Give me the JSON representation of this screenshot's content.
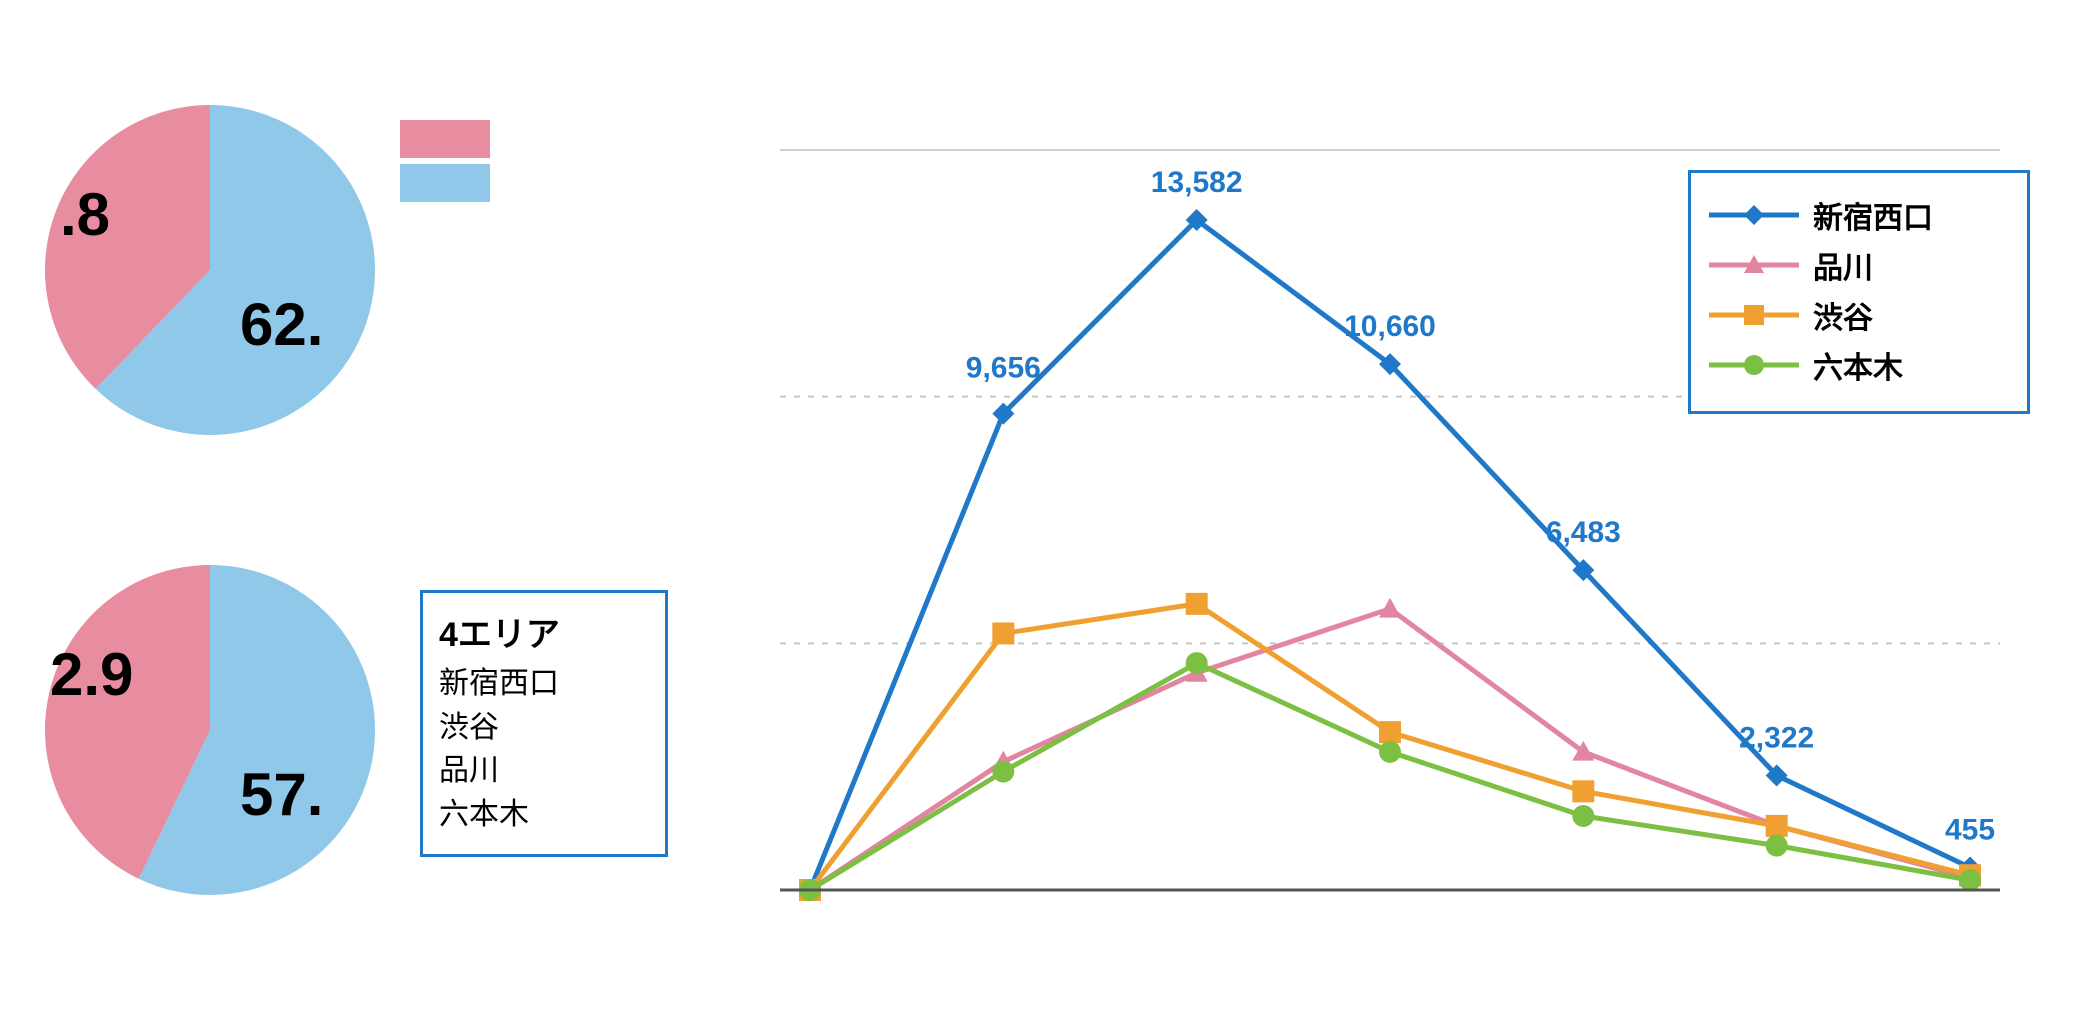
{
  "colors": {
    "pink": "#e88ca0",
    "blue": "#8fc8e8",
    "series_blue": "#1f78c8",
    "series_pink": "#e285a0",
    "series_orange": "#f0a030",
    "series_green": "#7bc043",
    "box_border": "#1f78c8",
    "grid": "#d0d0d0",
    "grid_dash": "#c8c8c8",
    "axis": "#555555",
    "text": "#000000"
  },
  "pie1": {
    "type": "pie",
    "pink_value": 37.8,
    "blue_value": 62.2,
    "pink_label": ".8",
    "blue_label": "62.",
    "pink_deg": 136.1,
    "blue_deg": 223.9,
    "label_fontsize": 60
  },
  "pie2": {
    "type": "pie",
    "pink_value": 42.9,
    "blue_value": 57.1,
    "pink_label": "2.9",
    "blue_label": "57.",
    "pink_deg": 154.4,
    "blue_deg": 205.6,
    "label_fontsize": 60
  },
  "area_box": {
    "title": "4エリア",
    "items": [
      "新宿西口",
      "渋谷",
      "品川",
      "六本木"
    ],
    "title_fontsize": 34,
    "item_fontsize": 30,
    "border_color": "#1f78c8"
  },
  "line_chart": {
    "type": "line",
    "x_count": 8,
    "ylim": [
      0,
      15000
    ],
    "gridlines_y": [
      5000,
      10000,
      15000
    ],
    "series": [
      {
        "name": "新宿西口",
        "color": "#1f78c8",
        "marker": "diamond",
        "values": [
          0,
          9656,
          13582,
          10660,
          6483,
          2322,
          455
        ],
        "show_labels": true
      },
      {
        "name": "品川",
        "color": "#e285a0",
        "marker": "triangle",
        "values": [
          0,
          2600,
          4400,
          5700,
          2800,
          1300,
          250
        ],
        "show_labels": false
      },
      {
        "name": "渋谷",
        "color": "#f0a030",
        "marker": "square",
        "values": [
          0,
          5200,
          5800,
          3200,
          2000,
          1300,
          300
        ],
        "show_labels": false
      },
      {
        "name": "六本木",
        "color": "#7bc043",
        "marker": "circle",
        "values": [
          0,
          2400,
          4600,
          2800,
          1500,
          900,
          200
        ],
        "show_labels": false
      }
    ],
    "line_width": 5,
    "marker_size": 22,
    "data_label_fontsize": 30,
    "data_label_color": "#1f78c8",
    "legend": {
      "border_color": "#1f78c8",
      "items": [
        "新宿西口",
        "品川",
        "渋谷",
        "六本木"
      ],
      "fontsize": 30
    }
  }
}
